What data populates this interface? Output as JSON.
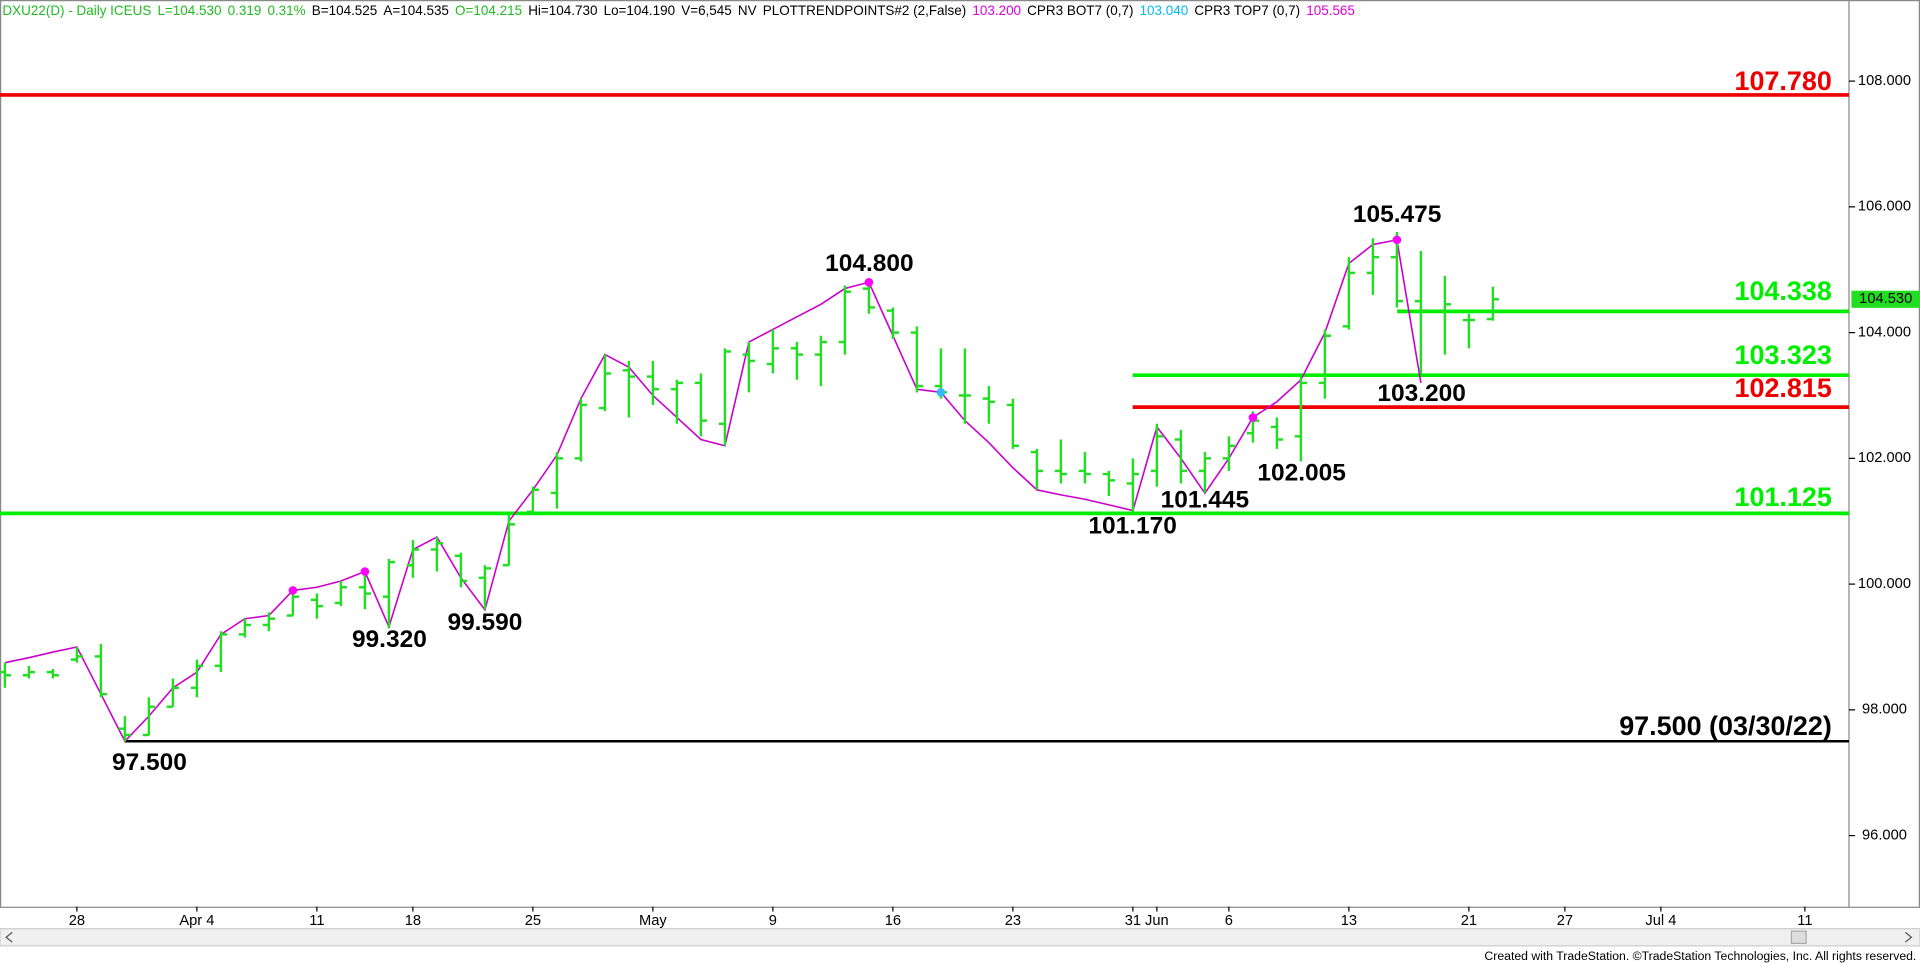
{
  "header_items": [
    {
      "text": "DXU22(D) - Daily ICEUS",
      "color": "#22bb22"
    },
    {
      "text": "L=104.530",
      "color": "#22bb22"
    },
    {
      "text": "0.319",
      "color": "#22bb22"
    },
    {
      "text": "0.31%",
      "color": "#22bb22"
    },
    {
      "text": "B=104.525",
      "color": "#000000"
    },
    {
      "text": "A=104.535",
      "color": "#000000"
    },
    {
      "text": "O=104.215",
      "color": "#22bb22"
    },
    {
      "text": "Hi=104.730",
      "color": "#000000"
    },
    {
      "text": "Lo=104.190",
      "color": "#000000"
    },
    {
      "text": "V=6,545",
      "color": "#000000"
    },
    {
      "text": "NV",
      "color": "#000000"
    },
    {
      "text": "PLOTTRENDPOINTS#2 (2,False)",
      "color": "#000000"
    },
    {
      "text": "103.200",
      "color": "#dd00dd"
    },
    {
      "text": "CPR3 BOT7 (0,7)",
      "color": "#000000"
    },
    {
      "text": "103.040",
      "color": "#00bbee"
    },
    {
      "text": "CPR3 TOP7 (0,7)",
      "color": "#000000"
    },
    {
      "text": "105.565",
      "color": "#dd00dd"
    }
  ],
  "footer": "Created with TradeStation. ©TradeStation Technologies, Inc. All rights reserved.",
  "chart_data": {
    "type": "ohlc",
    "categories": [
      null,
      null,
      null,
      "28",
      null,
      null,
      null,
      null,
      "Apr 4",
      null,
      null,
      null,
      null,
      "11",
      null,
      null,
      null,
      "18",
      null,
      null,
      null,
      null,
      "25",
      null,
      null,
      null,
      null,
      "May",
      null,
      null,
      null,
      null,
      "9",
      null,
      null,
      null,
      null,
      "16",
      null,
      null,
      null,
      null,
      "23",
      null,
      null,
      null,
      null,
      "31",
      "Jun",
      null,
      null,
      "6",
      null,
      null,
      null,
      null,
      "13",
      null,
      null,
      null,
      null,
      "21",
      null,
      null,
      null,
      "27",
      null,
      null,
      null,
      "Jul 4",
      null,
      null,
      null,
      null,
      null,
      "11",
      null
    ],
    "open": [
      98.6,
      98.55,
      98.6,
      98.8,
      98.85,
      97.7,
      97.6,
      98.05,
      98.35,
      98.7,
      99.2,
      99.35,
      99.5,
      99.75,
      99.7,
      99.95,
      99.8,
      100.3,
      100.55,
      100.45,
      100.1,
      100.3,
      101.15,
      101.45,
      102.0,
      102.8,
      103.4,
      103.3,
      103.1,
      103.2,
      102.55,
      103.65,
      103.5,
      103.75,
      103.65,
      103.85,
      104.7,
      104.35,
      104.0,
      103.15,
      103.0,
      102.95,
      102.85,
      102.1,
      101.8,
      101.8,
      101.75,
      101.6,
      101.8,
      102.3,
      101.8,
      102.0,
      102.4,
      102.5,
      102.35,
      103.2,
      104.1,
      104.95,
      105.2,
      104.5,
      104.35,
      104.2,
      104.215,
      null,
      null,
      null,
      null,
      null,
      null,
      null,
      null,
      null,
      null,
      null,
      null,
      null,
      null
    ],
    "high": [
      98.75,
      98.7,
      98.65,
      99.0,
      99.05,
      97.9,
      98.2,
      98.5,
      98.8,
      99.25,
      99.45,
      99.55,
      99.95,
      99.85,
      100.05,
      100.2,
      100.4,
      100.7,
      100.75,
      100.5,
      100.3,
      101.1,
      101.55,
      102.1,
      102.95,
      103.65,
      103.55,
      103.55,
      103.25,
      103.35,
      103.75,
      103.85,
      104.05,
      103.85,
      103.95,
      104.75,
      104.8,
      104.4,
      104.1,
      103.75,
      103.75,
      103.15,
      102.95,
      102.15,
      102.3,
      102.1,
      101.8,
      102.0,
      102.55,
      102.45,
      102.1,
      102.35,
      102.75,
      102.65,
      103.3,
      104.05,
      105.2,
      105.5,
      105.6,
      105.3,
      104.9,
      104.3,
      104.73,
      null,
      null,
      null,
      null,
      null,
      null,
      null,
      null,
      null,
      null,
      null,
      null,
      null,
      null
    ],
    "low": [
      98.35,
      98.5,
      98.5,
      98.75,
      98.2,
      97.5,
      97.6,
      98.05,
      98.2,
      98.6,
      99.15,
      99.25,
      99.5,
      99.45,
      99.65,
      99.6,
      99.3,
      100.1,
      100.2,
      99.95,
      99.6,
      100.3,
      101.1,
      101.2,
      101.95,
      102.75,
      102.65,
      102.85,
      102.55,
      102.35,
      102.2,
      103.05,
      103.35,
      103.25,
      103.15,
      103.65,
      104.3,
      103.9,
      103.05,
      102.95,
      102.55,
      102.55,
      102.15,
      101.5,
      101.6,
      101.6,
      101.4,
      101.15,
      101.55,
      101.6,
      101.45,
      101.8,
      102.25,
      102.15,
      101.95,
      102.95,
      104.05,
      104.6,
      104.4,
      103.35,
      103.65,
      103.75,
      104.19,
      null,
      null,
      null,
      null,
      null,
      null,
      null,
      null,
      null,
      null,
      null,
      null,
      null,
      null
    ],
    "close": [
      98.55,
      98.6,
      98.55,
      98.85,
      98.25,
      97.6,
      98.05,
      98.35,
      98.7,
      99.2,
      99.35,
      99.45,
      99.8,
      99.65,
      99.95,
      99.85,
      100.35,
      100.55,
      100.65,
      100.05,
      100.25,
      100.95,
      101.5,
      102.0,
      102.85,
      103.35,
      103.3,
      103.1,
      103.2,
      102.6,
      103.7,
      103.55,
      103.75,
      103.65,
      103.85,
      104.65,
      104.4,
      104.0,
      103.15,
      103.05,
      103.0,
      102.9,
      102.2,
      101.8,
      101.75,
      101.75,
      101.65,
      101.75,
      102.35,
      101.8,
      102.0,
      102.2,
      102.6,
      102.3,
      103.2,
      103.95,
      104.95,
      105.2,
      104.5,
      104.35,
      104.45,
      104.2,
      104.53,
      null,
      null,
      null,
      null,
      null,
      null,
      null,
      null,
      null,
      null,
      null,
      null,
      null,
      null
    ],
    "bar_color": "#22dd22",
    "zigzag": {
      "color": "#cc00cc",
      "values": [
        98.75,
        98.83,
        98.92,
        99.0,
        98.25,
        97.5,
        97.9,
        98.35,
        98.6,
        99.2,
        99.45,
        99.5,
        99.9,
        99.95,
        100.05,
        100.2,
        99.32,
        100.55,
        100.75,
        100.1,
        99.59,
        101.0,
        101.5,
        102.05,
        102.95,
        103.65,
        103.45,
        103.0,
        102.65,
        102.3,
        102.2,
        103.85,
        104.05,
        104.25,
        104.45,
        104.7,
        104.8,
        103.95,
        103.1,
        103.05,
        102.6,
        102.25,
        101.85,
        101.5,
        101.42,
        101.35,
        101.26,
        101.17,
        102.5,
        102.0,
        101.445,
        102.0,
        102.65,
        102.9,
        103.25,
        104.0,
        105.1,
        105.4,
        105.475,
        103.2,
        null,
        null,
        null,
        null,
        null,
        null,
        null,
        null,
        null,
        null,
        null,
        null,
        null,
        null,
        null,
        null,
        null
      ]
    },
    "pivot_markers": [
      {
        "color": "#ff00ff",
        "values": [
          null,
          null,
          null,
          null,
          null,
          null,
          null,
          null,
          null,
          null,
          null,
          null,
          99.9,
          null,
          null,
          100.2,
          null,
          null,
          null,
          null,
          null,
          null,
          null,
          null,
          null,
          null,
          null,
          null,
          null,
          null,
          null,
          null,
          null,
          null,
          null,
          null,
          104.8,
          null,
          null,
          null,
          null,
          null,
          null,
          null,
          null,
          null,
          null,
          null,
          null,
          null,
          null,
          null,
          102.65,
          null,
          null,
          null,
          null,
          null,
          105.475,
          null,
          null,
          null,
          null,
          null,
          null,
          null,
          null,
          null,
          null,
          null,
          null,
          null,
          null,
          null,
          null,
          null,
          null
        ]
      },
      {
        "color": "#33bbff",
        "values": [
          null,
          null,
          null,
          null,
          null,
          null,
          null,
          null,
          null,
          null,
          null,
          null,
          null,
          null,
          null,
          null,
          null,
          null,
          null,
          null,
          null,
          null,
          null,
          null,
          null,
          null,
          null,
          null,
          null,
          null,
          null,
          null,
          null,
          null,
          null,
          null,
          null,
          null,
          null,
          103.05,
          null,
          null,
          null,
          null,
          null,
          null,
          null,
          null,
          null,
          null,
          null,
          null,
          null,
          null,
          null,
          null,
          null,
          null,
          null,
          null,
          null,
          null,
          null,
          null,
          null,
          null,
          null,
          null,
          null,
          null,
          null,
          null,
          null,
          null,
          null,
          null,
          null
        ]
      }
    ],
    "levels": [
      {
        "value": 107.78,
        "label": "107.780",
        "color": "#ee0000"
      },
      {
        "value": 104.338,
        "label": "104.338",
        "color": "#00ee00"
      },
      {
        "value": 103.323,
        "label": "103.323",
        "color": "#00ee00"
      },
      {
        "value": 102.815,
        "label": "102.815",
        "color": "#ee0000"
      },
      {
        "value": 101.125,
        "label": "101.125",
        "color": "#00ee00"
      },
      {
        "value": 97.5,
        "label": "97.500 (03/30/22)",
        "color": "#000000"
      }
    ],
    "pivot_labels": [
      "104.800",
      "105.475",
      "103.200",
      "102.005",
      "101.445",
      "101.170",
      "99.590",
      "99.320",
      "97.500"
    ],
    "last_price": {
      "value": 104.53,
      "label": "104.530",
      "color": "#22dd22"
    },
    "ylim": [
      94.87,
      109.29
    ],
    "yticks": [
      {
        "value": 96,
        "label": "96.000"
      },
      {
        "value": 98,
        "label": "98.000"
      },
      {
        "value": 100,
        "label": "100.000"
      },
      {
        "value": 102,
        "label": "102.000"
      },
      {
        "value": 104,
        "label": "104.000"
      },
      {
        "value": 106,
        "label": "106.000"
      },
      {
        "value": 108,
        "label": "108.000"
      }
    ],
    "log_scale": false
  }
}
